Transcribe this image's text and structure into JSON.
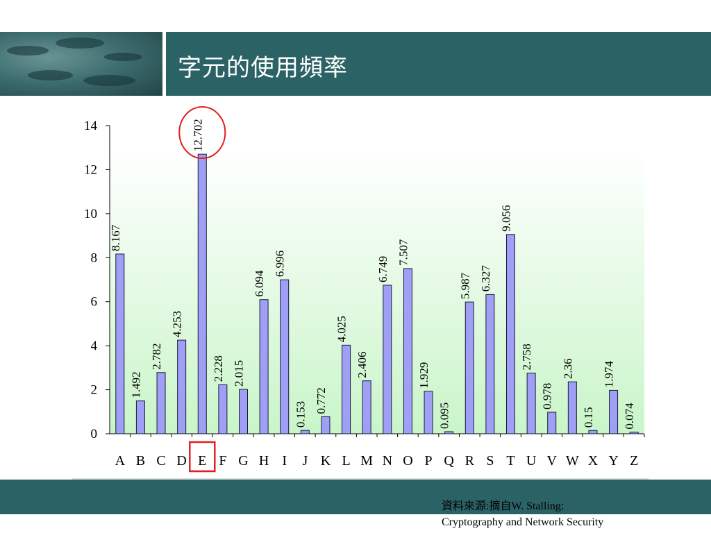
{
  "header": {
    "title": "字元的使用頻率"
  },
  "footer": {
    "source_line1": "資料來源:摘自W. Stalling:",
    "source_line2": "Cryptography and Network Security"
  },
  "colors": {
    "bar": "#9f9ff5",
    "bar_stroke": "#1a1a3a",
    "title_bar": "#2b6266",
    "highlight": "#e02020"
  },
  "chart_data": {
    "type": "bar",
    "categories": [
      "A",
      "B",
      "C",
      "D",
      "E",
      "F",
      "G",
      "H",
      "I",
      "J",
      "K",
      "L",
      "M",
      "N",
      "O",
      "P",
      "Q",
      "R",
      "S",
      "T",
      "U",
      "V",
      "W",
      "X",
      "Y",
      "Z"
    ],
    "values": [
      8.167,
      1.492,
      2.782,
      4.253,
      12.702,
      2.228,
      2.015,
      6.094,
      6.996,
      0.153,
      0.772,
      4.025,
      2.406,
      6.749,
      7.507,
      1.929,
      0.095,
      5.987,
      6.327,
      9.056,
      2.758,
      0.978,
      2.36,
      0.15,
      1.974,
      0.074
    ],
    "value_labels": [
      "8.167",
      "1.492",
      "2.782",
      "4.253",
      "12.702",
      "2.228",
      "2.015",
      "6.094",
      "6.996",
      "0.153",
      "0.772",
      "4.025",
      "2.406",
      "6.749",
      "7.507",
      "1.929",
      "0.095",
      "5.987",
      "6.327",
      "9.056",
      "2.758",
      "0.978",
      "2.36",
      "0.15",
      "1.974",
      "0.074"
    ],
    "ylim": [
      0,
      14
    ],
    "yticks": [
      "0",
      "2",
      "4",
      "6",
      "8",
      "10",
      "12",
      "14"
    ],
    "highlight_category": "E",
    "grid": false
  }
}
